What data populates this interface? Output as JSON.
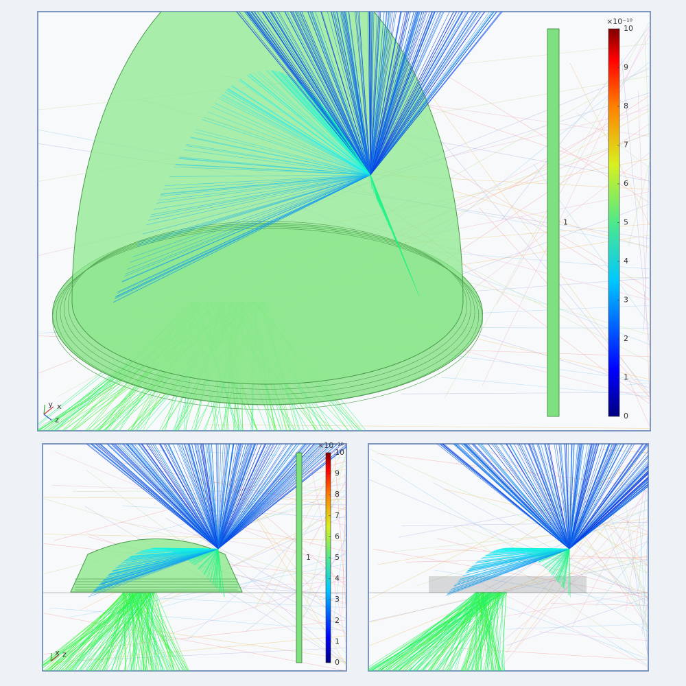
{
  "main": {
    "colorbar": {
      "multiplier": "×10⁻¹⁰",
      "ticks": [
        0,
        1,
        2,
        3,
        4,
        5,
        6,
        7,
        8,
        9,
        10
      ]
    },
    "bar_label": "1",
    "axes": [
      "x",
      "y",
      "z"
    ]
  },
  "bottom_left": {
    "colorbar": {
      "multiplier": "×10⁻¹⁰",
      "ticks": [
        0,
        1,
        2,
        3,
        4,
        5,
        6,
        7,
        8,
        9,
        10
      ]
    },
    "bar_label": "1",
    "axes": [
      "z",
      "x"
    ]
  }
}
